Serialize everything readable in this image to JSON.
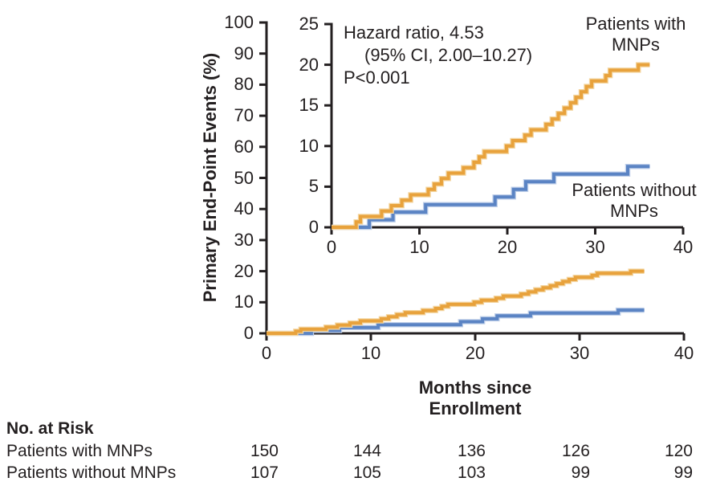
{
  "colors": {
    "with_mnps": "#E8A23C",
    "with_mnps_halo": "#F3D5A0",
    "without_mnps": "#5B84C4",
    "without_mnps_halo": "#BFCFE9",
    "axis": "#231F20",
    "text": "#231F20"
  },
  "labels": {
    "with_mnps": {
      "line1": "Patients with",
      "line2": "MNPs"
    },
    "without_mnps": {
      "line1": "Patients without",
      "line2": "MNPs"
    }
  },
  "chart_data": {
    "type": "line",
    "subtype": "kaplan-meier-cumulative-incidence-step",
    "title": "",
    "xlabel": "Months since Enrollment",
    "ylabel": "Primary End-Point Events (%)",
    "xlim": [
      0,
      40
    ],
    "main_ylim": [
      0,
      100
    ],
    "inset_ylim": [
      0,
      25
    ],
    "main_yticks": [
      0,
      10,
      20,
      30,
      40,
      50,
      60,
      70,
      80,
      90,
      100
    ],
    "inset_yticks": [
      0,
      5,
      10,
      15,
      20,
      25
    ],
    "xticks": [
      0,
      10,
      20,
      30,
      40
    ],
    "grid": false,
    "annotation": [
      "Hazard ratio, 4.53",
      "(95% CI, 2.00–10.27)",
      "P<0.001"
    ],
    "follow_up_end_month": 36.2,
    "series": [
      {
        "name": "Patients with MNPs",
        "color": "#E8A23C",
        "points": [
          [
            2.8,
            0.67
          ],
          [
            3.3,
            1.33
          ],
          [
            5.7,
            2.0
          ],
          [
            6.8,
            2.67
          ],
          [
            8.0,
            3.33
          ],
          [
            9.0,
            4.0
          ],
          [
            11.0,
            4.67
          ],
          [
            11.7,
            5.33
          ],
          [
            12.5,
            6.0
          ],
          [
            13.3,
            6.67
          ],
          [
            15.0,
            7.33
          ],
          [
            16.2,
            8.0
          ],
          [
            16.8,
            8.67
          ],
          [
            17.4,
            9.33
          ],
          [
            19.9,
            10.0
          ],
          [
            20.6,
            10.67
          ],
          [
            22.0,
            11.33
          ],
          [
            22.7,
            12.0
          ],
          [
            24.4,
            12.67
          ],
          [
            25.1,
            13.33
          ],
          [
            25.8,
            14.0
          ],
          [
            26.5,
            14.67
          ],
          [
            27.2,
            15.33
          ],
          [
            27.8,
            16.0
          ],
          [
            28.4,
            16.67
          ],
          [
            29.0,
            17.33
          ],
          [
            29.6,
            18.0
          ],
          [
            31.2,
            18.67
          ],
          [
            31.7,
            19.33
          ],
          [
            34.9,
            20.0
          ]
        ]
      },
      {
        "name": "Patients without MNPs",
        "color": "#5B84C4",
        "points": [
          [
            4.3,
            0.93
          ],
          [
            7.0,
            1.87
          ],
          [
            10.7,
            2.8
          ],
          [
            18.6,
            3.74
          ],
          [
            20.7,
            4.67
          ],
          [
            22.1,
            5.61
          ],
          [
            25.3,
            6.54
          ],
          [
            33.7,
            7.48
          ]
        ]
      }
    ]
  },
  "risk_table": {
    "title": "No. at Risk",
    "timepoints": [
      0,
      10,
      20,
      30,
      40
    ],
    "rows": [
      {
        "label": "Patients with MNPs",
        "values": [
          "150",
          "144",
          "136",
          "126",
          "120"
        ]
      },
      {
        "label": "Patients without MNPs",
        "values": [
          "107",
          "105",
          "103",
          "99",
          "99"
        ]
      }
    ]
  }
}
